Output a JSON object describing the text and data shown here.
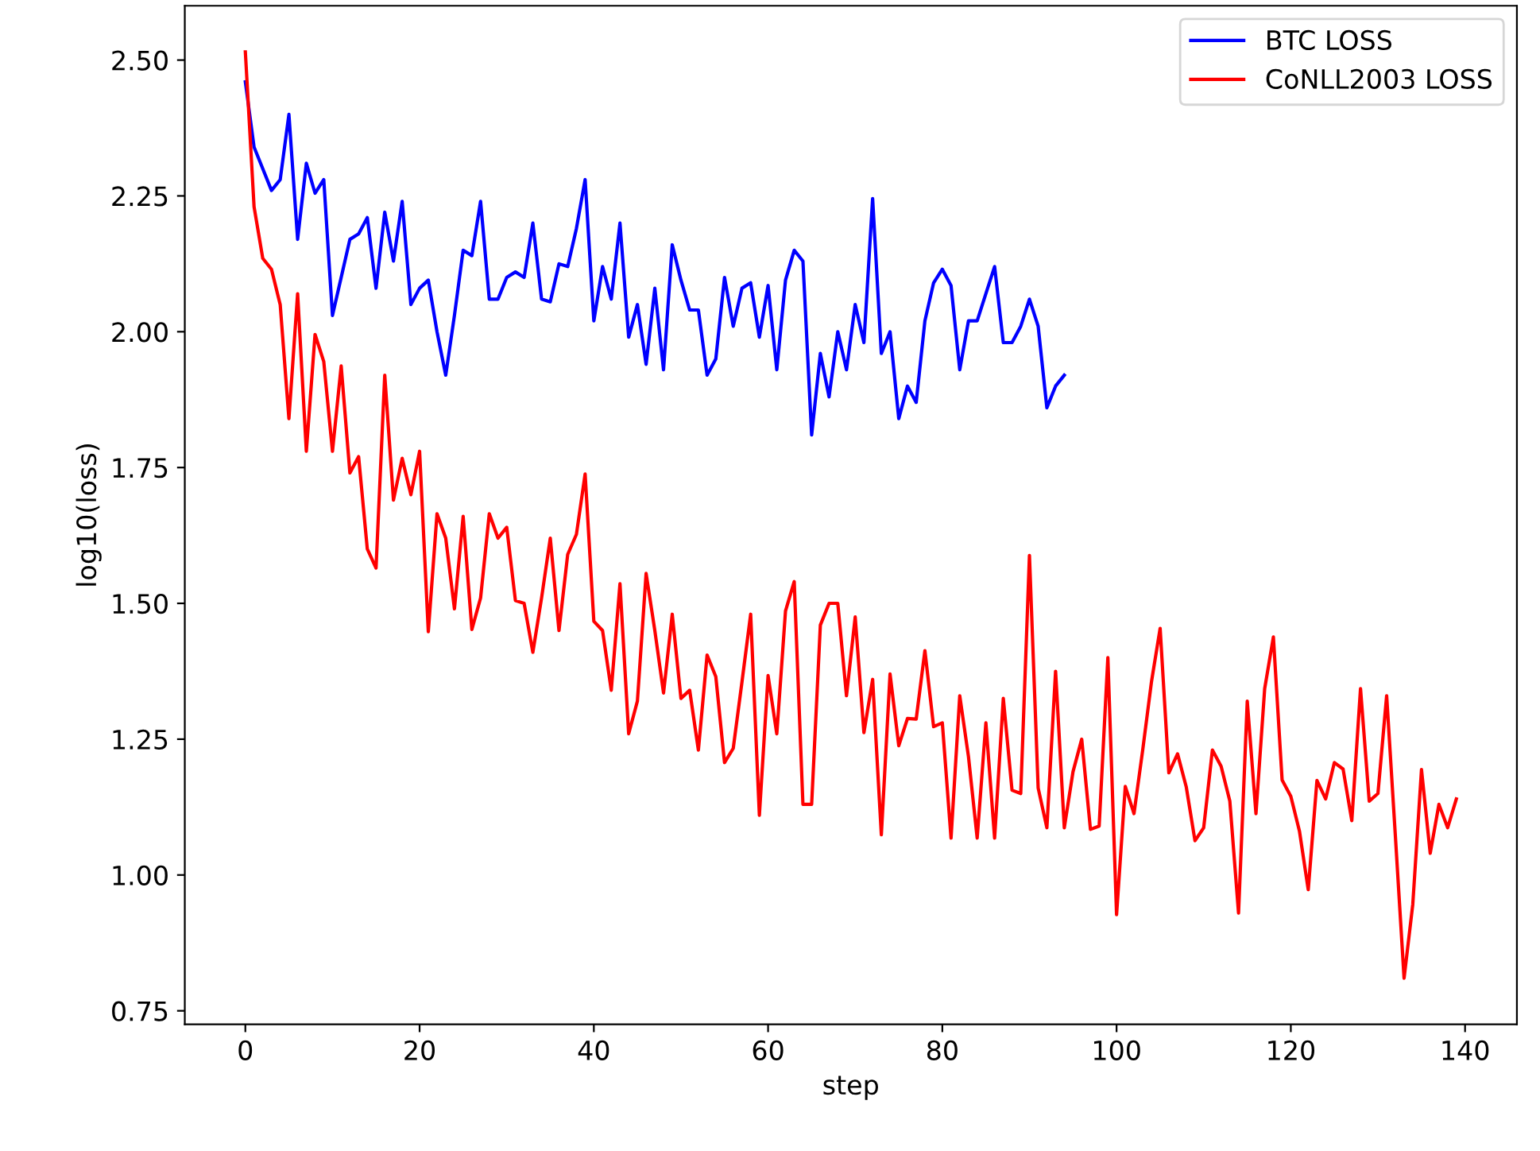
{
  "chart_data": {
    "type": "line",
    "xlabel": "step",
    "ylabel": "log10(loss)",
    "xlim": [
      -6.95,
      145.95
    ],
    "xticks": [
      0,
      20,
      40,
      60,
      80,
      100,
      120,
      140
    ],
    "ylim": [
      0.725,
      2.6
    ],
    "yticks": [
      {
        "value": 0.75,
        "label": "0.75"
      },
      {
        "value": 1.0,
        "label": "1.00"
      },
      {
        "value": 1.25,
        "label": "1.25"
      },
      {
        "value": 1.5,
        "label": "1.50"
      },
      {
        "value": 1.75,
        "label": "1.75"
      },
      {
        "value": 2.0,
        "label": "2.00"
      },
      {
        "value": 2.25,
        "label": "2.25"
      },
      {
        "value": 2.5,
        "label": "2.50"
      }
    ],
    "legend": "top right",
    "grid": false,
    "line_style": "solid",
    "series": [
      {
        "name": "BTC LOSS",
        "color": "#0000ff",
        "x": [
          0,
          1,
          2,
          3,
          4,
          5,
          6,
          7,
          8,
          9,
          10,
          11,
          12,
          13,
          14,
          15,
          16,
          17,
          18,
          19,
          20,
          21,
          22,
          23,
          24,
          25,
          26,
          27,
          28,
          29,
          30,
          31,
          32,
          33,
          34,
          35,
          36,
          37,
          38,
          39,
          40,
          41,
          42,
          43,
          44,
          45,
          46,
          47,
          48,
          49,
          50,
          51,
          52,
          53,
          54,
          55,
          56,
          57,
          58,
          59,
          60,
          61,
          62,
          63,
          64,
          65,
          66,
          67,
          68,
          69,
          70,
          71,
          72,
          73,
          74,
          75,
          76,
          77,
          78,
          79,
          80,
          81,
          82,
          83,
          84,
          85,
          86,
          87,
          88,
          89,
          90,
          91,
          92,
          93,
          94
        ],
        "values": [
          2.46,
          2.34,
          2.3,
          2.26,
          2.28,
          2.4,
          2.17,
          2.31,
          2.255,
          2.28,
          2.03,
          2.1,
          2.17,
          2.18,
          2.21,
          2.08,
          2.22,
          2.13,
          2.24,
          2.05,
          2.08,
          2.095,
          2.0,
          1.92,
          2.03,
          2.15,
          2.14,
          2.24,
          2.06,
          2.06,
          2.1,
          2.11,
          2.1,
          2.2,
          2.06,
          2.055,
          2.125,
          2.12,
          2.19,
          2.28,
          2.02,
          2.12,
          2.06,
          2.2,
          1.99,
          2.05,
          1.94,
          2.08,
          1.93,
          2.16,
          2.095,
          2.04,
          2.04,
          1.92,
          1.95,
          2.1,
          2.01,
          2.08,
          2.09,
          1.99,
          2.085,
          1.93,
          2.095,
          2.15,
          2.13,
          1.81,
          1.96,
          1.88,
          2.0,
          1.93,
          2.05,
          1.98,
          2.245,
          1.96,
          2.0,
          1.84,
          1.9,
          1.87,
          2.02,
          2.09,
          2.115,
          2.085,
          1.93,
          2.02,
          2.02,
          2.07,
          2.12,
          1.98,
          1.98,
          2.01,
          2.06,
          2.01,
          1.86,
          1.9,
          1.92
        ]
      },
      {
        "name": "CoNLL2003 LOSS",
        "color": "#ff0000",
        "x": [
          0,
          1,
          2,
          3,
          4,
          5,
          6,
          7,
          8,
          9,
          10,
          11,
          12,
          13,
          14,
          15,
          16,
          17,
          18,
          19,
          20,
          21,
          22,
          23,
          24,
          25,
          26,
          27,
          28,
          29,
          30,
          31,
          32,
          33,
          34,
          35,
          36,
          37,
          38,
          39,
          40,
          41,
          42,
          43,
          44,
          45,
          46,
          47,
          48,
          49,
          50,
          51,
          52,
          53,
          54,
          55,
          56,
          57,
          58,
          59,
          60,
          61,
          62,
          63,
          64,
          65,
          66,
          67,
          68,
          69,
          70,
          71,
          72,
          73,
          74,
          75,
          76,
          77,
          78,
          79,
          80,
          81,
          82,
          83,
          84,
          85,
          86,
          87,
          88,
          89,
          90,
          91,
          92,
          93,
          94,
          95,
          96,
          97,
          98,
          99,
          100,
          101,
          102,
          103,
          104,
          105,
          106,
          107,
          108,
          109,
          110,
          111,
          112,
          113,
          114,
          115,
          116,
          117,
          118,
          119,
          120,
          121,
          122,
          123,
          124,
          125,
          126,
          127,
          128,
          129,
          130,
          131,
          132,
          133,
          134,
          135,
          136,
          137,
          138,
          139
        ],
        "values": [
          2.515,
          2.23,
          2.135,
          2.115,
          2.05,
          1.84,
          2.07,
          1.78,
          1.995,
          1.945,
          1.78,
          1.937,
          1.74,
          1.77,
          1.6,
          1.565,
          1.92,
          1.69,
          1.767,
          1.7,
          1.78,
          1.448,
          1.665,
          1.62,
          1.49,
          1.66,
          1.452,
          1.51,
          1.665,
          1.62,
          1.64,
          1.505,
          1.5,
          1.41,
          1.51,
          1.62,
          1.45,
          1.59,
          1.627,
          1.738,
          1.467,
          1.45,
          1.34,
          1.536,
          1.26,
          1.32,
          1.555,
          1.45,
          1.335,
          1.48,
          1.325,
          1.34,
          1.23,
          1.405,
          1.365,
          1.207,
          1.233,
          1.355,
          1.48,
          1.11,
          1.367,
          1.26,
          1.486,
          1.54,
          1.13,
          1.13,
          1.46,
          1.5,
          1.5,
          1.33,
          1.475,
          1.262,
          1.36,
          1.074,
          1.37,
          1.238,
          1.288,
          1.287,
          1.413,
          1.273,
          1.28,
          1.068,
          1.33,
          1.218,
          1.068,
          1.28,
          1.068,
          1.325,
          1.156,
          1.15,
          1.588,
          1.16,
          1.087,
          1.375,
          1.087,
          1.19,
          1.25,
          1.084,
          1.09,
          1.4,
          0.927,
          1.163,
          1.113,
          1.23,
          1.355,
          1.454,
          1.188,
          1.223,
          1.162,
          1.063,
          1.087,
          1.23,
          1.2,
          1.136,
          0.93,
          1.32,
          1.113,
          1.343,
          1.438,
          1.175,
          1.145,
          1.08,
          0.973,
          1.174,
          1.14,
          1.207,
          1.195,
          1.1,
          1.343,
          1.136,
          1.15,
          1.33,
          1.072,
          0.81,
          0.946,
          1.194,
          1.04,
          1.13,
          1.087,
          1.14
        ]
      }
    ]
  }
}
